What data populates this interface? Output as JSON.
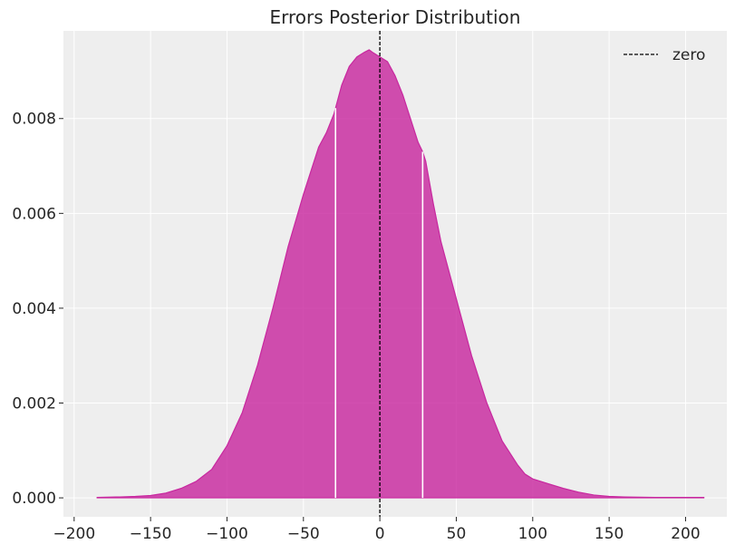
{
  "chart_data": {
    "type": "area",
    "title": "Errors Posterior Distribution",
    "xlabel": "",
    "ylabel": "",
    "xlim": [
      -207,
      227
    ],
    "ylim": [
      -0.0004,
      0.00985
    ],
    "x_ticks": [
      -200,
      -150,
      -100,
      -50,
      0,
      50,
      100,
      150,
      200
    ],
    "x_tick_labels": [
      "−200",
      "−150",
      "−100",
      "−50",
      "0",
      "50",
      "100",
      "150",
      "200"
    ],
    "y_ticks": [
      0.0,
      0.002,
      0.004,
      0.006,
      0.008
    ],
    "y_tick_labels": [
      "0.000",
      "0.002",
      "0.004",
      "0.006",
      "0.008"
    ],
    "grid": true,
    "legend_position": "top-right",
    "fill_color": "#c8289f",
    "reference_line": {
      "x": 0,
      "label": "zero",
      "style": "dashed",
      "color": "#000000"
    },
    "interval_boundaries": [
      -29,
      28
    ],
    "series": [
      {
        "name": "",
        "x": [
          -185,
          -170,
          -160,
          -150,
          -140,
          -130,
          -120,
          -110,
          -100,
          -90,
          -80,
          -70,
          -60,
          -50,
          -40,
          -35,
          -30,
          -25,
          -20,
          -15,
          -10,
          -7,
          -5,
          0,
          5,
          10,
          15,
          20,
          25,
          28,
          30,
          35,
          40,
          45,
          50,
          55,
          60,
          70,
          80,
          90,
          95,
          100,
          110,
          120,
          130,
          140,
          150,
          160,
          180,
          212
        ],
        "y": [
          1e-05,
          2e-05,
          3e-05,
          5e-05,
          0.0001,
          0.0002,
          0.00035,
          0.0006,
          0.0011,
          0.0018,
          0.0028,
          0.004,
          0.0053,
          0.0064,
          0.0074,
          0.0077,
          0.0081,
          0.0087,
          0.0091,
          0.0093,
          0.0094,
          0.00945,
          0.0094,
          0.0093,
          0.0092,
          0.0089,
          0.0085,
          0.008,
          0.0075,
          0.0073,
          0.0071,
          0.0062,
          0.0054,
          0.0048,
          0.0042,
          0.0036,
          0.003,
          0.002,
          0.0012,
          0.0007,
          0.0005,
          0.0004,
          0.0003,
          0.0002,
          0.00012,
          6e-05,
          3e-05,
          2e-05,
          1e-05,
          1e-05
        ]
      }
    ]
  }
}
